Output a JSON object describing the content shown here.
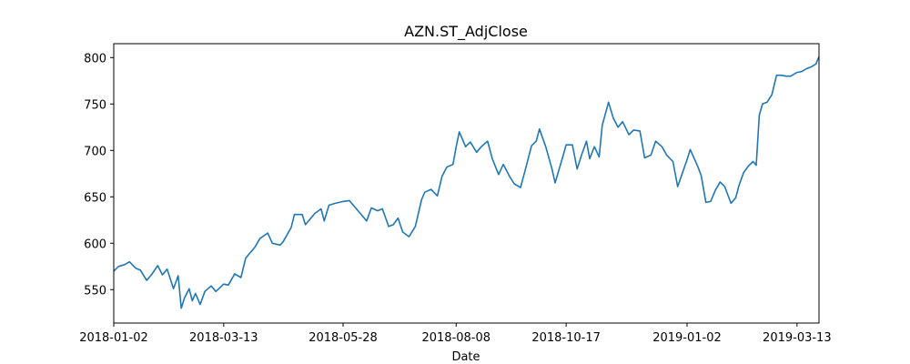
{
  "chart_data": {
    "type": "line",
    "title": "AZN.ST_AdjClose",
    "xlabel": "Date",
    "ylabel": "",
    "xlim": [
      "2018-01-02",
      "2019-03-27"
    ],
    "ylim": [
      514,
      815
    ],
    "grid": false,
    "legend": "none",
    "x_ticks": [
      "2018-01-02",
      "2018-03-13",
      "2018-05-28",
      "2018-08-08",
      "2018-10-17",
      "2019-01-02",
      "2019-03-13"
    ],
    "y_ticks": [
      550,
      600,
      650,
      700,
      750,
      800
    ],
    "series": [
      {
        "name": "",
        "color": "#1f77b4",
        "points": [
          [
            "2018-01-02",
            570
          ],
          [
            "2018-01-05",
            575
          ],
          [
            "2018-01-09",
            577
          ],
          [
            "2018-01-12",
            580
          ],
          [
            "2018-01-16",
            573
          ],
          [
            "2018-01-19",
            571
          ],
          [
            "2018-01-23",
            560
          ],
          [
            "2018-01-26",
            566
          ],
          [
            "2018-01-30",
            576
          ],
          [
            "2018-02-02",
            566
          ],
          [
            "2018-02-05",
            572
          ],
          [
            "2018-02-09",
            551
          ],
          [
            "2018-02-12",
            565
          ],
          [
            "2018-02-14",
            530
          ],
          [
            "2018-02-16",
            541
          ],
          [
            "2018-02-19",
            551
          ],
          [
            "2018-02-21",
            538
          ],
          [
            "2018-02-23",
            546
          ],
          [
            "2018-02-26",
            534
          ],
          [
            "2018-03-01",
            548
          ],
          [
            "2018-03-05",
            554
          ],
          [
            "2018-03-08",
            548
          ],
          [
            "2018-03-13",
            556
          ],
          [
            "2018-03-16",
            555
          ],
          [
            "2018-03-20",
            567
          ],
          [
            "2018-03-24",
            563
          ],
          [
            "2018-03-27",
            584
          ],
          [
            "2018-04-02",
            596
          ],
          [
            "2018-04-05",
            605
          ],
          [
            "2018-04-10",
            611
          ],
          [
            "2018-04-13",
            600
          ],
          [
            "2018-04-18",
            598
          ],
          [
            "2018-04-20",
            602
          ],
          [
            "2018-04-25",
            617
          ],
          [
            "2018-04-27",
            631
          ],
          [
            "2018-05-02",
            631
          ],
          [
            "2018-05-04",
            620
          ],
          [
            "2018-05-10",
            632
          ],
          [
            "2018-05-14",
            637
          ],
          [
            "2018-05-16",
            624
          ],
          [
            "2018-05-19",
            641
          ],
          [
            "2018-05-23",
            643
          ],
          [
            "2018-05-28",
            645
          ],
          [
            "2018-06-01",
            646
          ],
          [
            "2018-06-05",
            638
          ],
          [
            "2018-06-08",
            632
          ],
          [
            "2018-06-12",
            624
          ],
          [
            "2018-06-15",
            638
          ],
          [
            "2018-06-19",
            635
          ],
          [
            "2018-06-22",
            637
          ],
          [
            "2018-06-26",
            618
          ],
          [
            "2018-06-29",
            620
          ],
          [
            "2018-07-02",
            627
          ],
          [
            "2018-07-05",
            612
          ],
          [
            "2018-07-09",
            607
          ],
          [
            "2018-07-13",
            618
          ],
          [
            "2018-07-17",
            647
          ],
          [
            "2018-07-19",
            655
          ],
          [
            "2018-07-23",
            658
          ],
          [
            "2018-07-27",
            651
          ],
          [
            "2018-07-30",
            672
          ],
          [
            "2018-08-02",
            682
          ],
          [
            "2018-08-06",
            685
          ],
          [
            "2018-08-08",
            704
          ],
          [
            "2018-08-10",
            720
          ],
          [
            "2018-08-14",
            704
          ],
          [
            "2018-08-17",
            709
          ],
          [
            "2018-08-21",
            698
          ],
          [
            "2018-08-24",
            704
          ],
          [
            "2018-08-28",
            710
          ],
          [
            "2018-08-31",
            691
          ],
          [
            "2018-09-04",
            674
          ],
          [
            "2018-09-07",
            685
          ],
          [
            "2018-09-11",
            672
          ],
          [
            "2018-09-14",
            664
          ],
          [
            "2018-09-18",
            660
          ],
          [
            "2018-09-21",
            679
          ],
          [
            "2018-09-25",
            705
          ],
          [
            "2018-09-28",
            710
          ],
          [
            "2018-09-30",
            723
          ],
          [
            "2018-10-04",
            704
          ],
          [
            "2018-10-08",
            680
          ],
          [
            "2018-10-10",
            665
          ],
          [
            "2018-10-15",
            694
          ],
          [
            "2018-10-17",
            706
          ],
          [
            "2018-10-21",
            706
          ],
          [
            "2018-10-24",
            680
          ],
          [
            "2018-10-27",
            696
          ],
          [
            "2018-10-30",
            710
          ],
          [
            "2018-11-01",
            691
          ],
          [
            "2018-11-04",
            704
          ],
          [
            "2018-11-07",
            693
          ],
          [
            "2018-11-09",
            727
          ],
          [
            "2018-11-13",
            752
          ],
          [
            "2018-11-16",
            735
          ],
          [
            "2018-11-19",
            725
          ],
          [
            "2018-11-22",
            731
          ],
          [
            "2018-11-26",
            717
          ],
          [
            "2018-11-29",
            722
          ],
          [
            "2018-12-03",
            721
          ],
          [
            "2018-12-06",
            692
          ],
          [
            "2018-12-10",
            695
          ],
          [
            "2018-12-13",
            710
          ],
          [
            "2018-12-17",
            704
          ],
          [
            "2018-12-20",
            695
          ],
          [
            "2018-12-24",
            688
          ],
          [
            "2018-12-27",
            661
          ],
          [
            "2019-01-02",
            690
          ],
          [
            "2019-01-04",
            701
          ],
          [
            "2019-01-09",
            682
          ],
          [
            "2019-01-11",
            673
          ],
          [
            "2019-01-14",
            644
          ],
          [
            "2019-01-17",
            645
          ],
          [
            "2019-01-20",
            657
          ],
          [
            "2019-01-23",
            666
          ],
          [
            "2019-01-26",
            661
          ],
          [
            "2019-01-30",
            643
          ],
          [
            "2019-02-02",
            649
          ],
          [
            "2019-02-04",
            662
          ],
          [
            "2019-02-07",
            676
          ],
          [
            "2019-02-10",
            683
          ],
          [
            "2019-02-13",
            688
          ],
          [
            "2019-02-15",
            684
          ],
          [
            "2019-02-17",
            738
          ],
          [
            "2019-02-19",
            750
          ],
          [
            "2019-02-22",
            752
          ],
          [
            "2019-02-25",
            760
          ],
          [
            "2019-02-28",
            781
          ],
          [
            "2019-03-03",
            781
          ],
          [
            "2019-03-06",
            780
          ],
          [
            "2019-03-09",
            780
          ],
          [
            "2019-03-13",
            784
          ],
          [
            "2019-03-16",
            785
          ],
          [
            "2019-03-19",
            788
          ],
          [
            "2019-03-22",
            790
          ],
          [
            "2019-03-25",
            793
          ],
          [
            "2019-03-27",
            801
          ]
        ]
      }
    ]
  }
}
